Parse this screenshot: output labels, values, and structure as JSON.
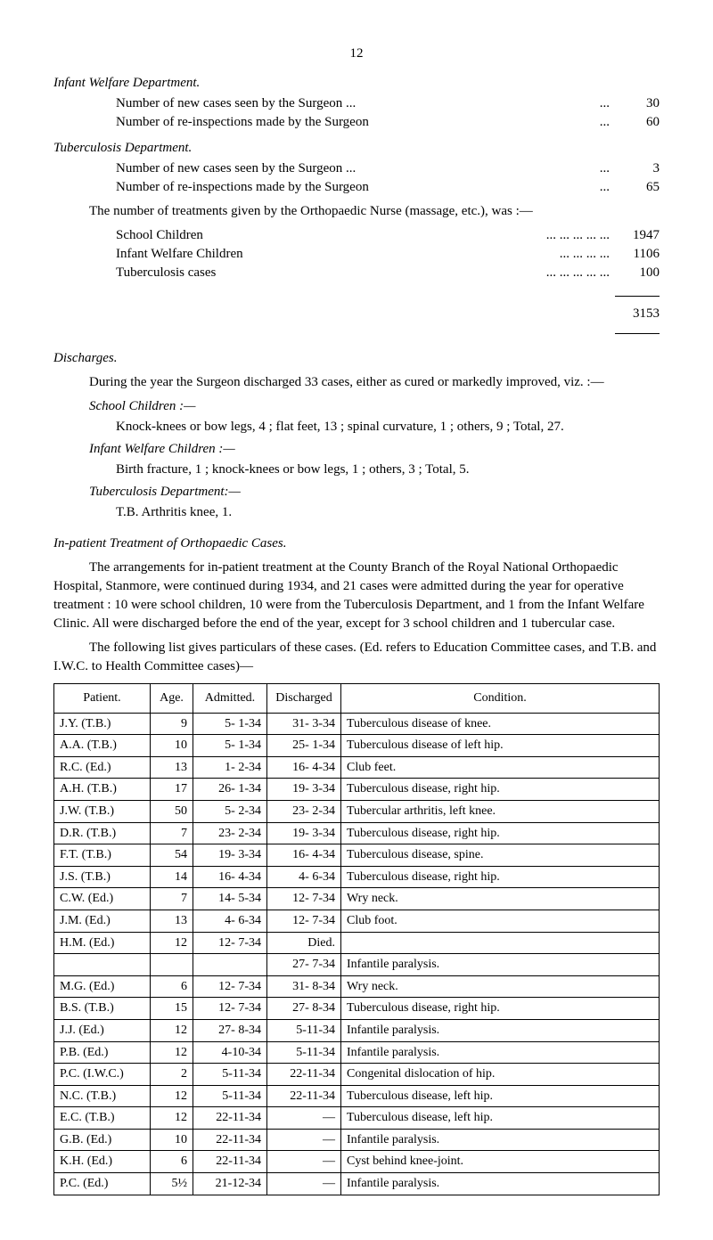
{
  "page_number": "12",
  "sections": {
    "infant_welfare": {
      "title": "Infant Welfare Department.",
      "lines": [
        {
          "label": "Number of new cases seen by the Surgeon  ...",
          "dots": "...",
          "value": "30"
        },
        {
          "label": "Number of re-inspections made by the Surgeon",
          "dots": "...",
          "value": "60"
        }
      ]
    },
    "tb_dept": {
      "title": "Tuberculosis Department.",
      "lines": [
        {
          "label": "Number of new cases seen by the Surgeon  ...",
          "dots": "...",
          "value": "3"
        },
        {
          "label": "Number of re-inspections made by the Surgeon",
          "dots": "...",
          "value": "65"
        }
      ]
    }
  },
  "ortho_intro": "The number of treatments given by the Orthopaedic Nurse (massage, etc.), was :—",
  "ortho_lines": [
    {
      "label": "School Children",
      "dots": "...      ...      ...      ...      ...",
      "value": "1947"
    },
    {
      "label": "Infant Welfare Children",
      "dots": "...      ...      ...      ...",
      "value": "1106"
    },
    {
      "label": "Tuberculosis cases",
      "dots": "...      ...      ...      ...      ...",
      "value": "100"
    }
  ],
  "ortho_total": "3153",
  "discharges": {
    "title": "Discharges.",
    "intro": "During the year the Surgeon discharged 33 cases, either as cured or markedly improved, viz. :—",
    "school": {
      "title": "School Children :—",
      "text": "Knock-knees or bow legs, 4 ; flat feet, 13 ; spinal curvature, 1 ; others, 9 ; Total, 27."
    },
    "infant": {
      "title": "Infant Welfare Children :—",
      "text": "Birth fracture, 1 ; knock-knees or bow legs, 1 ; others, 3 ; Total, 5."
    },
    "tb": {
      "title": "Tuberculosis Department:—",
      "text": "T.B. Arthritis knee, 1."
    }
  },
  "inpatient": {
    "title": "In-patient Treatment of Orthopaedic Cases.",
    "para1": "The arrangements for in-patient treatment at the County Branch of the Royal National Orthopaedic Hospital, Stanmore, were continued during 1934, and 21 cases were admitted during the year for operative treatment : 10 were school children, 10 were from the Tuberculosis Department, and 1 from the Infant Welfare Clinic. All were discharged before the end of the year, except for 3 school children and 1 tubercular case.",
    "para2": "The following list gives particulars of these cases. (Ed. refers to Education Committee cases, and T.B. and I.W.C. to Health Committee cases)—"
  },
  "table": {
    "headers": [
      "Patient.",
      "Age.",
      "Admitted.",
      "Discharged",
      "Condition."
    ],
    "rows": [
      [
        "J.Y. (T.B.)",
        "9",
        "5-  1-34",
        "31-  3-34",
        "Tuberculous disease of knee."
      ],
      [
        "A.A. (T.B.)",
        "10",
        "5-  1-34",
        "25-  1-34",
        "Tuberculous disease of left hip."
      ],
      [
        "R.C. (Ed.)",
        "13",
        "1-  2-34",
        "16-  4-34",
        "Club feet."
      ],
      [
        "A.H. (T.B.)",
        "17",
        "26-  1-34",
        "19-  3-34",
        "Tuberculous disease, right hip."
      ],
      [
        "J.W. (T.B.)",
        "50",
        "5-  2-34",
        "23-  2-34",
        "Tubercular arthritis, left knee."
      ],
      [
        "D.R. (T.B.)",
        "7",
        "23-  2-34",
        "19-  3-34",
        "Tuberculous disease, right hip."
      ],
      [
        "F.T. (T.B.)",
        "54",
        "19-  3-34",
        "16-  4-34",
        "Tuberculous disease, spine."
      ],
      [
        "J.S. (T.B.)",
        "14",
        "16-  4-34",
        "4-  6-34",
        "Tuberculous disease, right hip."
      ],
      [
        "C.W. (Ed.)",
        "7",
        "14-  5-34",
        "12-  7-34",
        "Wry neck."
      ],
      [
        "J.M. (Ed.)",
        "13",
        "4-  6-34",
        "12-  7-34",
        "Club foot."
      ],
      [
        "H.M. (Ed.)",
        "12",
        "12-  7-34",
        "Died.",
        ""
      ],
      [
        "",
        "",
        "",
        "27-  7-34",
        "Infantile paralysis."
      ],
      [
        "M.G. (Ed.)",
        "6",
        "12-  7-34",
        "31-  8-34",
        "Wry neck."
      ],
      [
        "B.S. (T.B.)",
        "15",
        "12-  7-34",
        "27-  8-34",
        "Tuberculous disease, right hip."
      ],
      [
        "J.J. (Ed.)",
        "12",
        "27-  8-34",
        "5-11-34",
        "Infantile paralysis."
      ],
      [
        "P.B. (Ed.)",
        "12",
        "4-10-34",
        "5-11-34",
        "Infantile paralysis."
      ],
      [
        "P.C. (I.W.C.)",
        "2",
        "5-11-34",
        "22-11-34",
        "Congenital dislocation of hip."
      ],
      [
        "N.C. (T.B.)",
        "12",
        "5-11-34",
        "22-11-34",
        "Tuberculous disease, left hip."
      ],
      [
        "E.C. (T.B.)",
        "12",
        "22-11-34",
        "—",
        "Tuberculous disease, left hip."
      ],
      [
        "G.B. (Ed.)",
        "10",
        "22-11-34",
        "—",
        "Infantile paralysis."
      ],
      [
        "K.H. (Ed.)",
        "6",
        "22-11-34",
        "—",
        "Cyst behind knee-joint."
      ],
      [
        "P.C. (Ed.)",
        "5½",
        "21-12-34",
        "—",
        "Infantile paralysis."
      ]
    ]
  }
}
